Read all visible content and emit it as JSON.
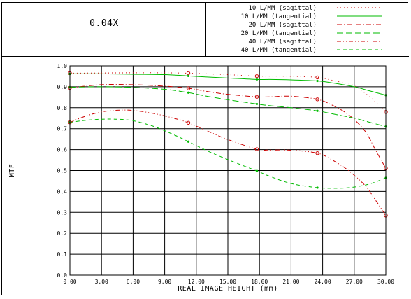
{
  "header": {
    "title": "0.04X"
  },
  "chart_data": {
    "type": "line",
    "title": "0.04X",
    "xlabel": "REAL IMAGE HEIGHT (mm)",
    "ylabel": "MTF",
    "xlim": [
      0,
      30
    ],
    "ylim": [
      0,
      1.0
    ],
    "x_ticks": [
      "0.00",
      "3.00",
      "6.00",
      "9.00",
      "12.00",
      "15.00",
      "18.00",
      "21.00",
      "24.00",
      "27.00",
      "30.00"
    ],
    "y_ticks": [
      "0.0",
      "0.1",
      "0.2",
      "0.3",
      "0.4",
      "0.5",
      "0.6",
      "0.7",
      "0.8",
      "0.9",
      "1.0"
    ],
    "grid": true,
    "legend_position": "top-right",
    "marker_x": [
      0,
      11.25,
      17.75,
      23.5,
      30
    ],
    "series": [
      {
        "name": "10 L/MM (sagittal)",
        "color": "#cc0000",
        "dash": "dot",
        "x": [
          0,
          3,
          6,
          9,
          11.25,
          13,
          15,
          17.75,
          19,
          21,
          23.5,
          25,
          27,
          28.5,
          30
        ],
        "y": [
          0.965,
          0.966,
          0.967,
          0.967,
          0.965,
          0.962,
          0.958,
          0.951,
          0.951,
          0.95,
          0.945,
          0.93,
          0.905,
          0.85,
          0.78
        ]
      },
      {
        "name": "10 L/MM (tangential)",
        "color": "#00bb00",
        "dash": "solid",
        "x": [
          0,
          3,
          6,
          9,
          11.25,
          13,
          15,
          17.75,
          19,
          21,
          23.5,
          25,
          27,
          28.5,
          30
        ],
        "y": [
          0.962,
          0.962,
          0.96,
          0.958,
          0.952,
          0.947,
          0.942,
          0.935,
          0.935,
          0.933,
          0.928,
          0.918,
          0.9,
          0.88,
          0.86
        ]
      },
      {
        "name": "20 L/MM (sagittal)",
        "color": "#cc0000",
        "dash": "dashdot",
        "x": [
          0,
          3,
          6,
          9,
          11.25,
          13,
          15,
          17.75,
          19,
          21,
          23.5,
          25,
          26.5,
          28,
          29,
          30
        ],
        "y": [
          0.895,
          0.91,
          0.91,
          0.903,
          0.893,
          0.878,
          0.864,
          0.852,
          0.852,
          0.855,
          0.84,
          0.81,
          0.765,
          0.69,
          0.6,
          0.51
        ]
      },
      {
        "name": "20 L/MM (tangential)",
        "color": "#00bb00",
        "dash": "longdash",
        "x": [
          0,
          3,
          6,
          9,
          11.25,
          13,
          15,
          17.75,
          19,
          21,
          23.5,
          25,
          27,
          28.5,
          30
        ],
        "y": [
          0.898,
          0.9,
          0.897,
          0.888,
          0.872,
          0.855,
          0.838,
          0.818,
          0.81,
          0.8,
          0.785,
          0.77,
          0.75,
          0.73,
          0.71
        ]
      },
      {
        "name": "40 L/MM (sagittal)",
        "color": "#cc0000",
        "dash": "dashdotdot",
        "x": [
          0,
          1.5,
          3,
          4.5,
          6,
          8,
          10,
          11.25,
          13,
          15,
          17.75,
          19,
          21,
          23.5,
          25,
          26.5,
          28,
          29,
          30
        ],
        "y": [
          0.73,
          0.76,
          0.78,
          0.788,
          0.787,
          0.772,
          0.748,
          0.728,
          0.69,
          0.648,
          0.602,
          0.598,
          0.597,
          0.583,
          0.548,
          0.498,
          0.43,
          0.36,
          0.285
        ]
      },
      {
        "name": "40 L/MM (tangential)",
        "color": "#00bb00",
        "dash": "dashed",
        "x": [
          0,
          1.5,
          3,
          4.5,
          6,
          8,
          10,
          11.25,
          13,
          15,
          17.75,
          19,
          21,
          23.5,
          25,
          26.5,
          28,
          29,
          30
        ],
        "y": [
          0.73,
          0.74,
          0.745,
          0.745,
          0.738,
          0.71,
          0.668,
          0.638,
          0.595,
          0.552,
          0.498,
          0.472,
          0.438,
          0.418,
          0.415,
          0.418,
          0.43,
          0.445,
          0.465
        ]
      }
    ]
  }
}
